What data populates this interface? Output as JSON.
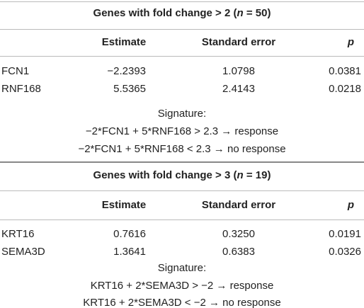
{
  "sections": [
    {
      "title": [
        "Genes with fold change > 2 (",
        "n",
        " = 50)"
      ],
      "header": [
        "Estimate",
        "Standard error",
        "p"
      ],
      "rows": [
        [
          "FCN1",
          "−2.2393",
          "1.0798",
          "0.0381"
        ],
        [
          "RNF168",
          "5.5365",
          "2.4143",
          "0.0218"
        ]
      ],
      "signature": [
        "Signature:",
        "−2*FCN1 + 5*RNF168 > 2.3 → response",
        "−2*FCN1 + 5*RNF168 < 2.3 → no response"
      ]
    },
    {
      "title": [
        "Genes with fold change > 3 (",
        "n",
        " = 19)"
      ],
      "header": [
        "Estimate",
        "Standard error",
        "p"
      ],
      "rows": [
        [
          "KRT16",
          "0.7616",
          "0.3250",
          "0.0191"
        ],
        [
          "SEMA3D",
          "1.3641",
          "0.6383",
          "0.0326"
        ]
      ],
      "signature": [
        "Signature:",
        "KRT16 + 2*SEMA3D > −2 → response",
        "KRT16 + 2*SEMA3D < −2 → no response"
      ]
    }
  ]
}
